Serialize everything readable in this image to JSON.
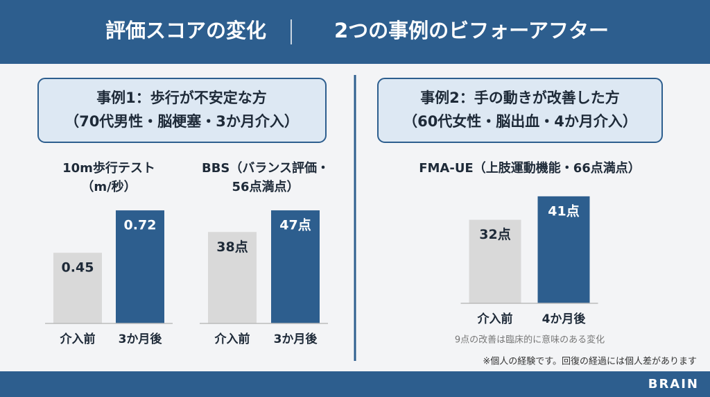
{
  "header": {
    "title": "評価スコアの変化",
    "subtitle": "2つの事例のビフォーアフター"
  },
  "cases": [
    {
      "title": "事例1：歩行が不安定な方",
      "detail": "（70代男性・脳梗塞・3か月介入）"
    },
    {
      "title": "事例2：手の動きが改善した方",
      "detail": "（60代女性・脳出血・4か月介入）"
    }
  ],
  "chart_data": [
    {
      "type": "bar",
      "title": [
        "10m歩行テスト",
        "（m/秒）"
      ],
      "categories": [
        "介入前",
        "3か月後"
      ],
      "values": [
        0.45,
        0.72
      ],
      "colors": [
        "#d9d9d9",
        "#2d5e8e"
      ],
      "ylim": [
        0,
        0.8
      ]
    },
    {
      "type": "bar",
      "title": [
        "BBS（バランス評価・",
        "56点満点）"
      ],
      "categories": [
        "介入前",
        "3か月後"
      ],
      "values": [
        38,
        47
      ],
      "value_labels": [
        "38点",
        "47点"
      ],
      "colors": [
        "#d9d9d9",
        "#2d5e8e"
      ],
      "ylim": [
        0,
        60
      ]
    },
    {
      "type": "bar",
      "title": [
        "FMA-UE（上肢運動機能・66点満点）"
      ],
      "categories": [
        "介入前",
        "4か月後"
      ],
      "values": [
        32,
        41
      ],
      "value_labels": [
        "32点",
        "41点"
      ],
      "colors": [
        "#d9d9d9",
        "#2d5e8e"
      ],
      "ylim": [
        0,
        50
      ],
      "annotation": "9点の改善は臨床的に意味のある変化"
    }
  ],
  "footer": {
    "note": "※個人の経験です。回復の経過には個人差があります",
    "brand": "BRAIN"
  }
}
